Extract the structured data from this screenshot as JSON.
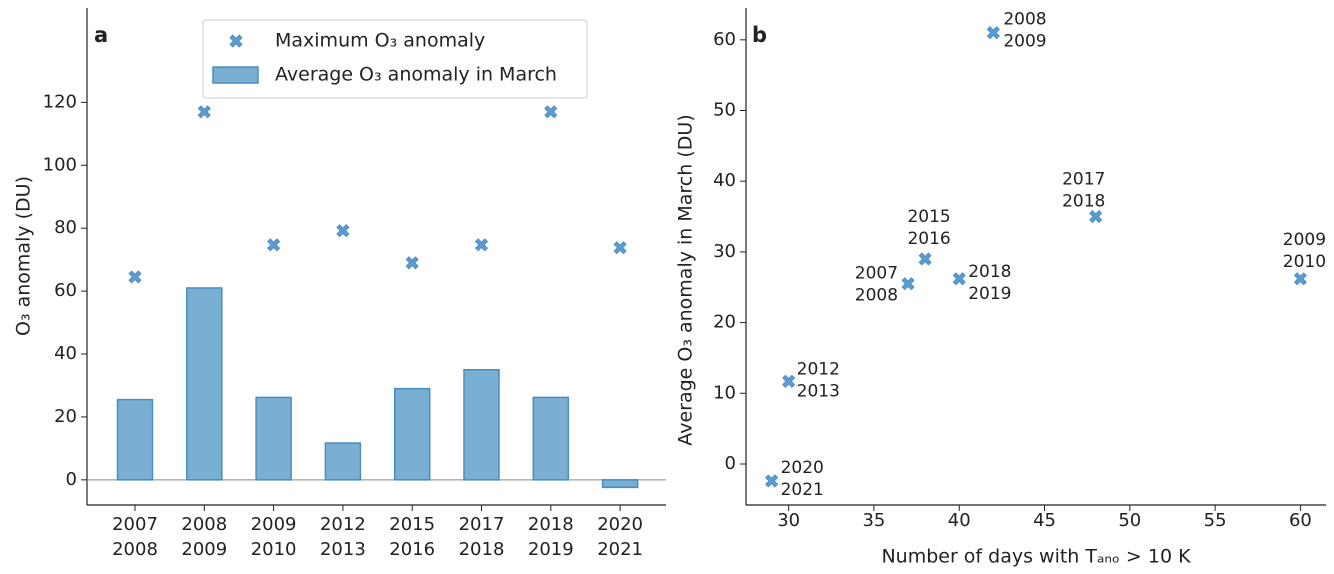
{
  "chart_data": [
    {
      "type": "bar",
      "panel_label": "a",
      "ylabel": "O₃ anomaly (DU)",
      "categories": [
        [
          "2007",
          "2008"
        ],
        [
          "2008",
          "2009"
        ],
        [
          "2009",
          "2010"
        ],
        [
          "2012",
          "2013"
        ],
        [
          "2015",
          "2016"
        ],
        [
          "2017",
          "2018"
        ],
        [
          "2018",
          "2019"
        ],
        [
          "2020",
          "2021"
        ]
      ],
      "series": [
        {
          "name": "Maximum O₃ anomaly",
          "type": "scatter",
          "color": "#5b9bd0",
          "values": [
            64.5,
            117,
            74.7,
            79.2,
            69,
            74.7,
            117,
            73.8
          ]
        },
        {
          "name": "Average O₃ anomaly in March",
          "type": "bar",
          "color": "#7aafd4",
          "edgecolor": "#4a8cc0",
          "values": [
            25.5,
            61,
            26.2,
            11.7,
            29,
            35,
            26.2,
            -2.4
          ]
        }
      ],
      "ylim": [
        -8,
        150
      ],
      "yticks": [
        0,
        20,
        40,
        60,
        80,
        100,
        120
      ],
      "legend": "upper center"
    },
    {
      "type": "scatter",
      "panel_label": "b",
      "xlabel": "Number of days with Tₐₙₒ > 10 K",
      "ylabel": "Average O₃ anomaly in March (DU)",
      "x": [
        29,
        30,
        37,
        38,
        40,
        42,
        48,
        60
      ],
      "y": [
        -2.4,
        11.7,
        25.5,
        29,
        26.2,
        61,
        35,
        26.2
      ],
      "point_labels": [
        [
          "2020",
          "2021"
        ],
        [
          "2012",
          "2013"
        ],
        [
          "2007",
          "2008"
        ],
        [
          "2015",
          "2016"
        ],
        [
          "2018",
          "2019"
        ],
        [
          "2008",
          "2009"
        ],
        [
          "2017",
          "2018"
        ],
        [
          "2009",
          "2010"
        ]
      ],
      "color": "#5b9bd0",
      "xlim": [
        27.5,
        61.5
      ],
      "xticks": [
        30,
        35,
        40,
        45,
        50,
        55,
        60
      ],
      "ylim": [
        -5.8,
        64.5
      ],
      "yticks": [
        0,
        10,
        20,
        30,
        40,
        50,
        60
      ]
    }
  ]
}
